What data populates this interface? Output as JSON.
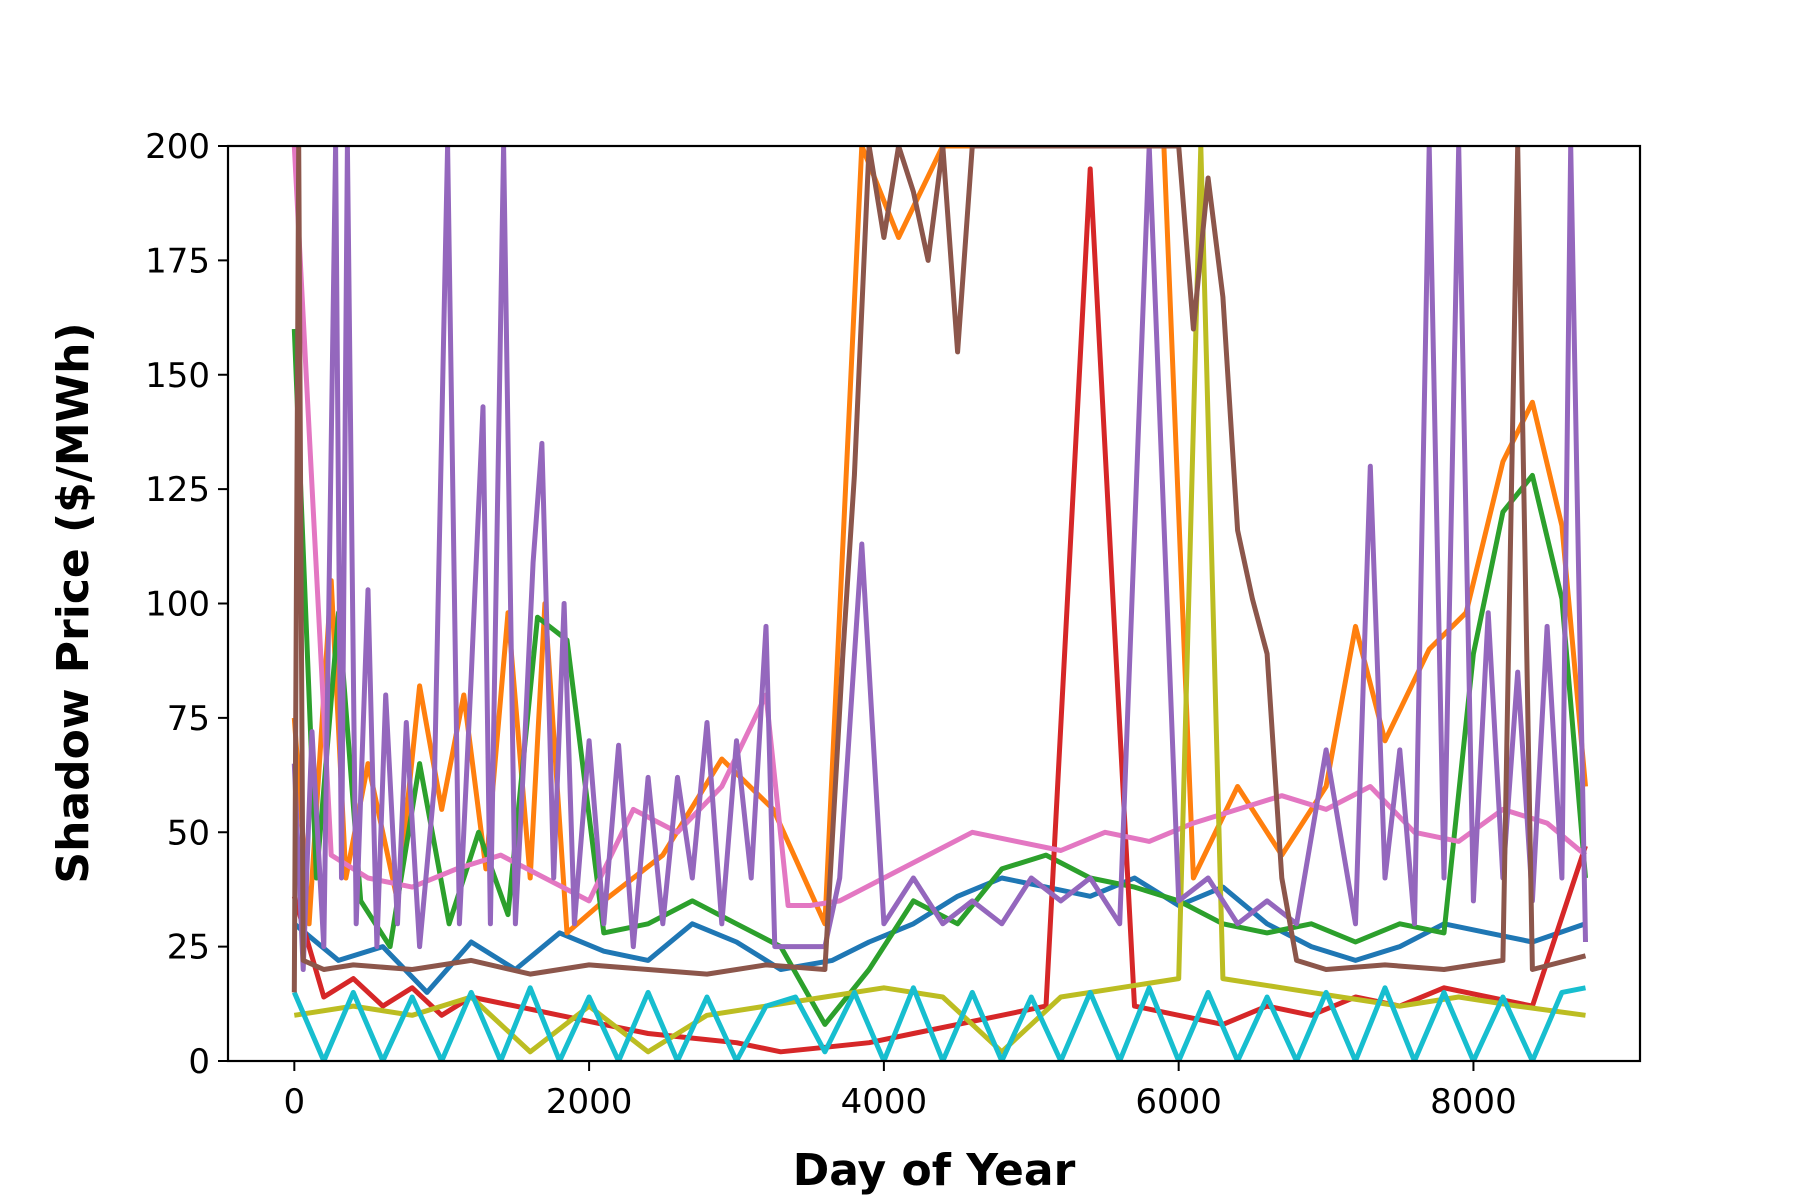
{
  "chart_data": {
    "type": "line",
    "title": "",
    "xlabel": "Day of Year",
    "ylabel": "Shadow Price ($/MWh)",
    "xlim": [
      -450,
      9130
    ],
    "ylim": [
      0,
      200
    ],
    "xticks": [
      0,
      2000,
      4000,
      6000,
      8000
    ],
    "xtick_labels": [
      "0",
      "2000",
      "4000",
      "6000",
      "8000"
    ],
    "yticks": [
      0,
      25,
      50,
      75,
      100,
      125,
      150,
      175,
      200
    ],
    "ytick_labels": [
      "0",
      "25",
      "50",
      "75",
      "100",
      "125",
      "150",
      "175",
      "200"
    ],
    "grid": false,
    "legend": "none",
    "series": [
      {
        "color": "#1f77b4",
        "x": [
          0,
          300,
          600,
          900,
          1200,
          1500,
          1800,
          2100,
          2400,
          2700,
          3000,
          3300,
          3650,
          3900,
          4200,
          4500,
          4800,
          5100,
          5400,
          5700,
          6000,
          6300,
          6600,
          6900,
          7200,
          7500,
          7800,
          8100,
          8400,
          8760
        ],
        "y": [
          30,
          22,
          25,
          15,
          26,
          20,
          28,
          24,
          22,
          30,
          26,
          20,
          22,
          26,
          30,
          36,
          40,
          38,
          36,
          40,
          34,
          38,
          30,
          25,
          22,
          25,
          30,
          28,
          26,
          30
        ]
      },
      {
        "color": "#ff7f0e",
        "x": [
          0,
          100,
          250,
          350,
          500,
          700,
          850,
          1000,
          1150,
          1300,
          1450,
          1600,
          1700,
          1850,
          2100,
          2500,
          2900,
          3250,
          3600,
          3850,
          4100,
          4400,
          4700,
          5000,
          5300,
          5600,
          5900,
          6100,
          6400,
          6700,
          7000,
          7200,
          7400,
          7700,
          7950,
          8200,
          8400,
          8600,
          8760
        ],
        "y": [
          75,
          30,
          105,
          40,
          65,
          35,
          82,
          55,
          80,
          42,
          98,
          40,
          100,
          28,
          35,
          45,
          66,
          55,
          30,
          200,
          180,
          200,
          200,
          200,
          200,
          200,
          200,
          40,
          60,
          45,
          60,
          95,
          70,
          90,
          98,
          131,
          144,
          117,
          60
        ]
      },
      {
        "color": "#2ca02c",
        "x": [
          0,
          150,
          300,
          450,
          650,
          850,
          1050,
          1250,
          1450,
          1650,
          1850,
          2100,
          2400,
          2700,
          3000,
          3300,
          3600,
          3900,
          4200,
          4500,
          4800,
          5100,
          5400,
          5700,
          6000,
          6300,
          6600,
          6900,
          7200,
          7500,
          7800,
          8000,
          8200,
          8400,
          8600,
          8760
        ],
        "y": [
          160,
          40,
          98,
          35,
          25,
          65,
          30,
          50,
          32,
          97,
          92,
          28,
          30,
          35,
          30,
          25,
          8,
          20,
          35,
          30,
          42,
          45,
          40,
          38,
          35,
          30,
          28,
          30,
          26,
          30,
          28,
          89,
          120,
          128,
          101,
          40
        ]
      },
      {
        "color": "#d62728",
        "x": [
          0,
          200,
          400,
          600,
          800,
          1000,
          1200,
          1500,
          1800,
          2100,
          2400,
          2700,
          3000,
          3300,
          3600,
          3900,
          4200,
          4500,
          4800,
          5100,
          5400,
          5700,
          6000,
          6300,
          6600,
          6900,
          7200,
          7500,
          7800,
          8100,
          8400,
          8760
        ],
        "y": [
          36,
          14,
          18,
          12,
          16,
          10,
          14,
          12,
          10,
          8,
          6,
          5,
          4,
          2,
          3,
          4,
          6,
          8,
          10,
          12,
          195,
          12,
          10,
          8,
          12,
          10,
          14,
          12,
          16,
          14,
          12,
          47
        ]
      },
      {
        "color": "#e377c2",
        "x": [
          0,
          250,
          500,
          800,
          1100,
          1400,
          1700,
          2000,
          2300,
          2600,
          2900,
          3200,
          3350,
          3500,
          3700,
          4000,
          4300,
          4600,
          4900,
          5200,
          5500,
          5800,
          6100,
          6400,
          6700,
          7000,
          7300,
          7600,
          7900,
          8200,
          8500,
          8760
        ],
        "y": [
          200,
          45,
          40,
          38,
          42,
          45,
          40,
          35,
          55,
          50,
          60,
          80,
          34,
          34,
          35,
          40,
          45,
          50,
          48,
          46,
          50,
          48,
          52,
          55,
          58,
          55,
          60,
          50,
          48,
          55,
          52,
          45
        ]
      },
      {
        "color": "#bcbd22",
        "x": [
          0,
          400,
          800,
          1200,
          1600,
          2000,
          2400,
          2800,
          3200,
          3600,
          4000,
          4400,
          4800,
          5200,
          5600,
          6000,
          6150,
          6300,
          6700,
          7100,
          7500,
          7900,
          8300,
          8760
        ],
        "y": [
          10,
          12,
          10,
          14,
          2,
          12,
          2,
          10,
          12,
          14,
          16,
          14,
          2,
          14,
          16,
          18,
          200,
          18,
          16,
          14,
          12,
          14,
          12,
          10
        ]
      },
      {
        "color": "#17becf",
        "x": [
          0,
          200,
          400,
          600,
          800,
          1000,
          1200,
          1400,
          1600,
          1800,
          2000,
          2200,
          2400,
          2600,
          2800,
          3000,
          3200,
          3400,
          3600,
          3800,
          4000,
          4200,
          4400,
          4600,
          4800,
          5000,
          5200,
          5400,
          5600,
          5800,
          6000,
          6200,
          6400,
          6600,
          6800,
          7000,
          7200,
          7400,
          7600,
          7800,
          8000,
          8200,
          8400,
          8600,
          8760
        ],
        "y": [
          15,
          0,
          15,
          0,
          14,
          0,
          15,
          0,
          16,
          0,
          14,
          0,
          15,
          0,
          14,
          0,
          12,
          14,
          2,
          15,
          0,
          16,
          0,
          15,
          0,
          14,
          0,
          15,
          0,
          16,
          0,
          15,
          0,
          14,
          0,
          15,
          0,
          16,
          0,
          15,
          0,
          14,
          0,
          15,
          16
        ]
      },
      {
        "color": "#9467bd",
        "x": [
          0,
          60,
          120,
          200,
          280,
          320,
          360,
          420,
          500,
          560,
          620,
          700,
          760,
          850,
          950,
          1040,
          1120,
          1200,
          1280,
          1330,
          1420,
          1500,
          1560,
          1620,
          1680,
          1760,
          1830,
          1900,
          2000,
          2100,
          2200,
          2300,
          2400,
          2500,
          2600,
          2700,
          2800,
          2900,
          3000,
          3100,
          3200,
          3260,
          3400,
          3500,
          3600,
          3700,
          3850,
          4000,
          4200,
          4400,
          4600,
          4800,
          5000,
          5200,
          5400,
          5600,
          5800,
          6000,
          6200,
          6400,
          6600,
          6800,
          7000,
          7200,
          7300,
          7400,
          7500,
          7600,
          7700,
          7800,
          7900,
          8000,
          8100,
          8200,
          8300,
          8400,
          8500,
          8600,
          8660,
          8760
        ],
        "y": [
          65,
          20,
          72,
          25,
          200,
          40,
          200,
          30,
          103,
          25,
          80,
          30,
          74,
          25,
          60,
          200,
          30,
          84,
          143,
          30,
          200,
          30,
          68,
          109,
          135,
          40,
          100,
          30,
          70,
          30,
          69,
          25,
          62,
          30,
          62,
          40,
          74,
          30,
          70,
          40,
          95,
          25,
          25,
          25,
          25,
          40,
          113,
          30,
          40,
          30,
          35,
          30,
          40,
          35,
          40,
          30,
          200,
          35,
          40,
          30,
          35,
          30,
          68,
          30,
          130,
          40,
          68,
          30,
          200,
          40,
          200,
          35,
          98,
          40,
          85,
          35,
          95,
          40,
          200,
          26
        ]
      },
      {
        "color": "#8c564b",
        "x": [
          0,
          30,
          60,
          200,
          400,
          800,
          1200,
          1600,
          2000,
          2400,
          2800,
          3200,
          3600,
          3720,
          3800,
          3900,
          4000,
          4100,
          4200,
          4300,
          4400,
          4500,
          4600,
          4700,
          4800,
          4900,
          5000,
          5100,
          5200,
          5300,
          5400,
          5500,
          5600,
          5700,
          5800,
          5900,
          6000,
          6100,
          6200,
          6300,
          6400,
          6500,
          6600,
          6700,
          6800,
          7000,
          7400,
          7800,
          8200,
          8300,
          8400,
          8760
        ],
        "y": [
          15,
          200,
          22,
          20,
          21,
          20,
          22,
          19,
          21,
          20,
          19,
          21,
          20,
          88,
          128,
          200,
          180,
          200,
          190,
          175,
          200,
          155,
          200,
          200,
          200,
          200,
          200,
          200,
          200,
          200,
          200,
          200,
          200,
          200,
          200,
          200,
          200,
          160,
          193,
          167,
          116,
          101,
          89,
          40,
          22,
          20,
          21,
          20,
          22,
          200,
          20,
          23
        ]
      }
    ]
  }
}
